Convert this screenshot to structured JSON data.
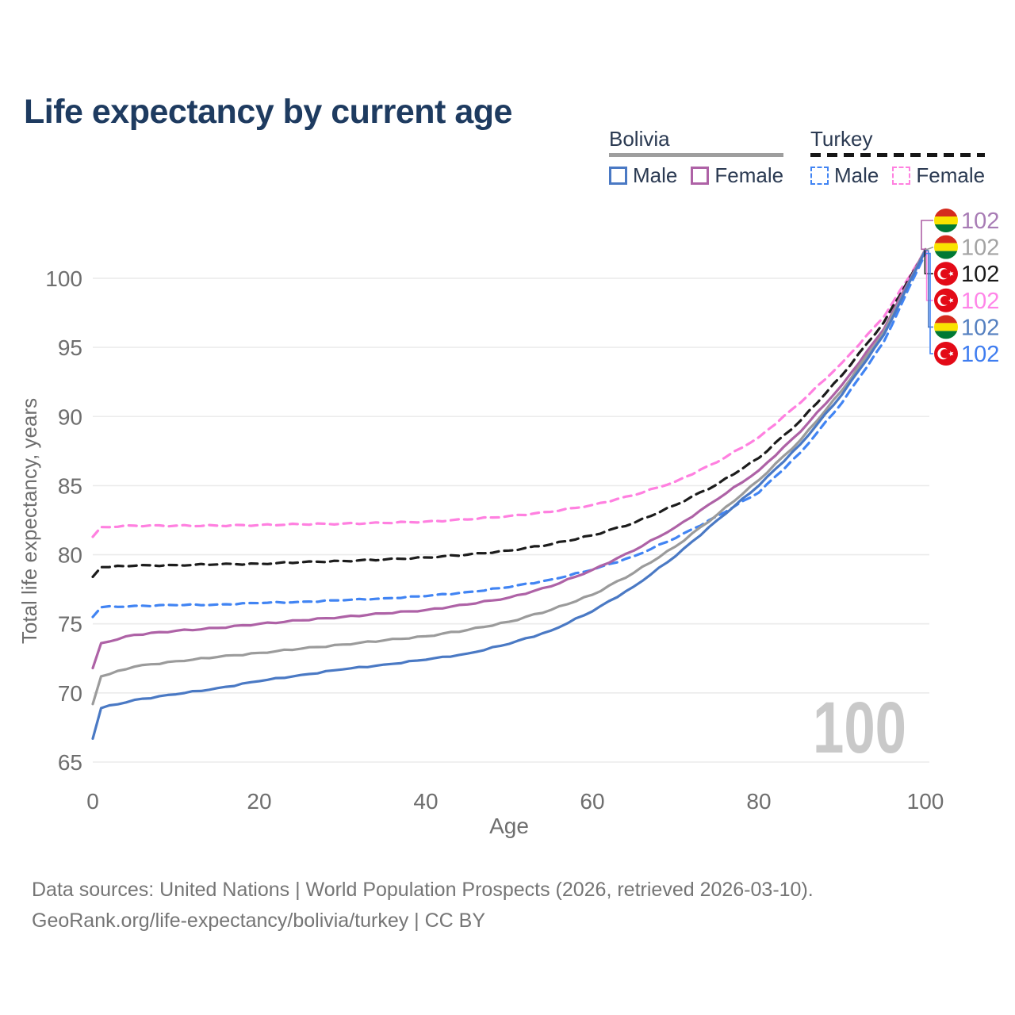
{
  "title": "Life expectancy by current age",
  "watermark": "100",
  "legend": {
    "groups": [
      {
        "country": "Bolivia",
        "line_style": "solid",
        "line_color": "#9e9e9e",
        "items": [
          {
            "label": "Male",
            "color": "#4a79c4",
            "dash": false
          },
          {
            "label": "Female",
            "color": "#ae62a6",
            "dash": false
          }
        ]
      },
      {
        "country": "Turkey",
        "line_style": "dashed",
        "line_color": "#161616",
        "items": [
          {
            "label": "Male",
            "color": "#4184f3",
            "dash": true
          },
          {
            "label": "Female",
            "color": "#ff80e0",
            "dash": true
          }
        ]
      }
    ]
  },
  "chart_data": {
    "type": "line",
    "title": "Life expectancy by current age",
    "xlabel": "Age",
    "ylabel": "Total life expectancy, years",
    "xlim": [
      0,
      100
    ],
    "ylim": [
      63.5,
      103.5
    ],
    "x_ticks": [
      0,
      20,
      40,
      60,
      80,
      100
    ],
    "y_ticks": [
      65,
      70,
      75,
      80,
      85,
      90,
      95,
      100
    ],
    "grid": "horizontal",
    "legend_position": "top-right",
    "ages": [
      0,
      1,
      5,
      10,
      15,
      20,
      25,
      30,
      35,
      40,
      45,
      50,
      55,
      60,
      65,
      70,
      75,
      80,
      85,
      90,
      95,
      100
    ],
    "series": [
      {
        "key": "turkey-female",
        "country": "Turkey",
        "sex": "Female",
        "color": "#ff80e0",
        "label_color": "#ff85e8",
        "dash": true,
        "values": [
          81.3,
          82.0,
          82.1,
          82.1,
          82.1,
          82.15,
          82.2,
          82.25,
          82.3,
          82.4,
          82.55,
          82.8,
          83.1,
          83.6,
          84.3,
          85.3,
          86.7,
          88.5,
          91.0,
          93.9,
          97.2,
          102.0
        ]
      },
      {
        "key": "turkey-both",
        "country": "Turkey",
        "sex": "Both sexes",
        "color": "#1c1c1c",
        "label_color": "#1a1a1a",
        "dash": true,
        "values": [
          78.4,
          79.1,
          79.2,
          79.25,
          79.3,
          79.35,
          79.45,
          79.55,
          79.65,
          79.8,
          80.0,
          80.3,
          80.75,
          81.4,
          82.3,
          83.6,
          85.1,
          87.0,
          89.7,
          93.0,
          96.8,
          102.0
        ]
      },
      {
        "key": "turkey-male",
        "country": "Turkey",
        "sex": "Male",
        "color": "#4184f3",
        "label_color": "#3f7df0",
        "dash": true,
        "values": [
          75.5,
          76.2,
          76.3,
          76.35,
          76.4,
          76.5,
          76.6,
          76.7,
          76.85,
          77.0,
          77.3,
          77.65,
          78.2,
          78.9,
          79.9,
          81.2,
          82.8,
          84.5,
          87.4,
          91.0,
          95.4,
          101.8
        ]
      },
      {
        "key": "bolivia-female",
        "country": "Bolivia",
        "sex": "Female",
        "color": "#ae62a6",
        "label_color": "#a87cb5",
        "dash": false,
        "values": [
          71.8,
          73.6,
          74.2,
          74.5,
          74.7,
          75.0,
          75.25,
          75.5,
          75.75,
          76.0,
          76.4,
          76.9,
          77.7,
          78.9,
          80.3,
          82.0,
          84.0,
          86.1,
          88.9,
          92.3,
          96.3,
          102.1
        ]
      },
      {
        "key": "bolivia-both",
        "country": "Bolivia",
        "sex": "Both sexes",
        "color": "#9b9b9b",
        "label_color": "#a3a3a3",
        "dash": false,
        "values": [
          69.2,
          71.2,
          71.9,
          72.3,
          72.6,
          72.9,
          73.2,
          73.5,
          73.8,
          74.1,
          74.55,
          75.15,
          76.0,
          77.1,
          78.7,
          80.6,
          82.9,
          85.4,
          88.3,
          91.9,
          96.1,
          102.05
        ]
      },
      {
        "key": "bolivia-male",
        "country": "Bolivia",
        "sex": "Male",
        "color": "#4a79c4",
        "label_color": "#5580c0",
        "dash": false,
        "values": [
          66.7,
          68.9,
          69.5,
          69.9,
          70.35,
          70.85,
          71.3,
          71.7,
          72.05,
          72.4,
          72.85,
          73.55,
          74.5,
          75.9,
          77.7,
          79.9,
          82.5,
          85.0,
          88.0,
          91.6,
          95.9,
          102.0
        ]
      }
    ]
  },
  "callouts": [
    {
      "series": "bolivia-female",
      "flag": "bolivia",
      "value": "102"
    },
    {
      "series": "bolivia-both",
      "flag": "bolivia",
      "value": "102"
    },
    {
      "series": "turkey-both",
      "flag": "turkey",
      "value": "102"
    },
    {
      "series": "turkey-female",
      "flag": "turkey",
      "value": "102"
    },
    {
      "series": "bolivia-male",
      "flag": "bolivia",
      "value": "102"
    },
    {
      "series": "turkey-male",
      "flag": "turkey",
      "value": "102"
    }
  ],
  "flags": {
    "bolivia": [
      "#d52b1e",
      "#f9e300",
      "#007934"
    ],
    "turkey": "#e30a17"
  },
  "footer": {
    "line1": "Data sources: United Nations | World Population Prospects (2026, retrieved 2026-03-10).",
    "line2": "GeoRank.org/life-expectancy/bolivia/turkey | CC BY"
  }
}
